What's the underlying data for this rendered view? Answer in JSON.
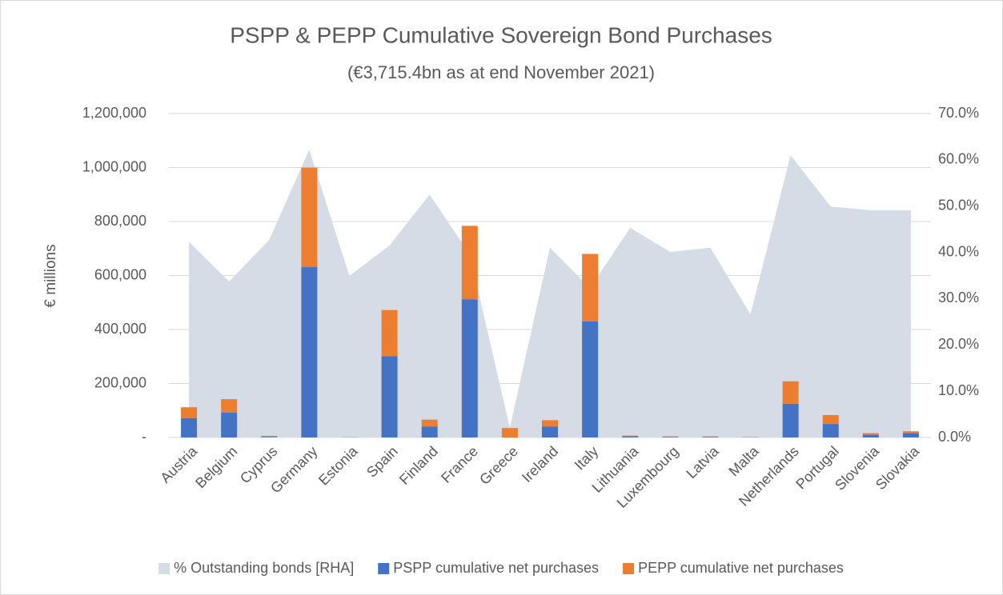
{
  "chart_data": {
    "type": "bar",
    "stacked": true,
    "title": "PSPP & PEPP Cumulative Sovereign Bond Purchases",
    "subtitle": "(€3,715.4bn as at end November 2021)",
    "y_label": "€ millions",
    "categories": [
      "Austria",
      "Belgium",
      "Cyprus",
      "Germany",
      "Estonia",
      "Spain",
      "Finland",
      "France",
      "Greece",
      "Ireland",
      "Italy",
      "Lithuania",
      "Luxembourg",
      "Latvia",
      "Malta",
      "Netherlands",
      "Portugal",
      "Slovenia",
      "Slovakia"
    ],
    "series": [
      {
        "name": "% Outstanding bonds [RHA]",
        "type": "area",
        "axis": "y2",
        "color": "#d6dce5",
        "values": [
          42.3,
          33.7,
          42.7,
          62.2,
          34.9,
          41.5,
          52.5,
          39.6,
          2.1,
          41.0,
          32.3,
          45.3,
          40.1,
          41.0,
          26.6,
          61.0,
          49.9,
          49.1,
          49.1
        ]
      },
      {
        "name": "PSPP cumulative net purchases",
        "type": "bar",
        "color": "#4472c4",
        "values": [
          72000,
          92000,
          2000,
          631000,
          500,
          301000,
          40000,
          512000,
          0,
          40000,
          430000,
          4000,
          2000,
          2000,
          1000,
          125000,
          50000,
          10000,
          16000
        ]
      },
      {
        "name": "PEPP cumulative net purchases",
        "type": "bar",
        "color": "#ed7d31",
        "values": [
          40000,
          50000,
          4000,
          369000,
          300,
          171000,
          26000,
          272000,
          35000,
          24000,
          250000,
          3000,
          2000,
          2000,
          500,
          83000,
          33000,
          6000,
          7000
        ]
      }
    ],
    "ylim": [
      0,
      1200000
    ],
    "yticks": [
      {
        "value": 0,
        "label": "-"
      },
      {
        "value": 200000,
        "label": "200,000"
      },
      {
        "value": 400000,
        "label": "400,000"
      },
      {
        "value": 600000,
        "label": "600,000"
      },
      {
        "value": 800000,
        "label": "800,000"
      },
      {
        "value": 1000000,
        "label": "1,000,000"
      },
      {
        "value": 1200000,
        "label": "1,200,000"
      }
    ],
    "y2lim": [
      0,
      70
    ],
    "y2ticks": [
      {
        "value": 0,
        "label": "0.0%"
      },
      {
        "value": 10,
        "label": "10.0%"
      },
      {
        "value": 20,
        "label": "20.0%"
      },
      {
        "value": 30,
        "label": "30.0%"
      },
      {
        "value": 40,
        "label": "40.0%"
      },
      {
        "value": 50,
        "label": "50.0%"
      },
      {
        "value": 60,
        "label": "60.0%"
      },
      {
        "value": 70,
        "label": "70.0%"
      }
    ],
    "grid": true,
    "legend": "bottom"
  }
}
